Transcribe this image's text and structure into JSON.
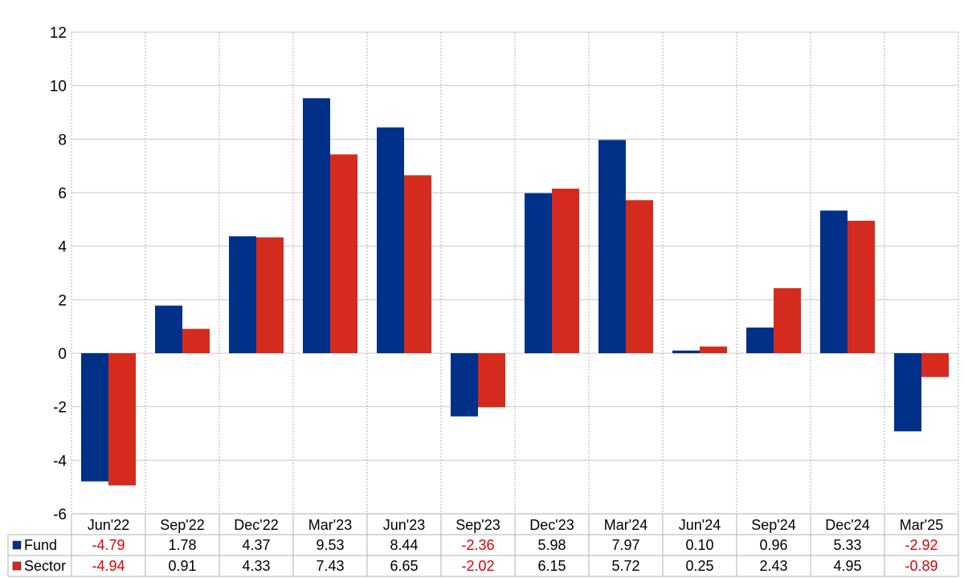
{
  "chart_data": {
    "type": "bar",
    "categories": [
      "Jun'22",
      "Sep'22",
      "Dec'22",
      "Mar'23",
      "Jun'23",
      "Sep'23",
      "Dec'23",
      "Mar'24",
      "Jun'24",
      "Sep'24",
      "Dec'24",
      "Mar'25"
    ],
    "series": [
      {
        "name": "Fund",
        "color": "#003087",
        "values": [
          -4.79,
          1.78,
          4.37,
          9.53,
          8.44,
          -2.36,
          5.98,
          7.97,
          0.1,
          0.96,
          5.33,
          -2.92
        ],
        "labels": [
          "-4.79",
          "1.78",
          "4.37",
          "9.53",
          "8.44",
          "-2.36",
          "5.98",
          "7.97",
          "0.10",
          "0.96",
          "5.33",
          "-2.92"
        ]
      },
      {
        "name": "Sector",
        "color": "#d52b1e",
        "values": [
          -4.94,
          0.91,
          4.33,
          7.43,
          6.65,
          -2.02,
          6.15,
          5.72,
          0.25,
          2.43,
          4.95,
          -0.89
        ],
        "labels": [
          "-4.94",
          "0.91",
          "4.33",
          "7.43",
          "6.65",
          "-2.02",
          "6.15",
          "5.72",
          "0.25",
          "2.43",
          "4.95",
          "-0.89"
        ]
      }
    ],
    "yticks": [
      "12",
      "10",
      "8",
      "6",
      "4",
      "2",
      "0",
      "-2",
      "-4",
      "-6"
    ],
    "ylim": [
      -6,
      12
    ],
    "grid": true,
    "negative_label_color": "#e00000",
    "legend": "data-table-below"
  }
}
